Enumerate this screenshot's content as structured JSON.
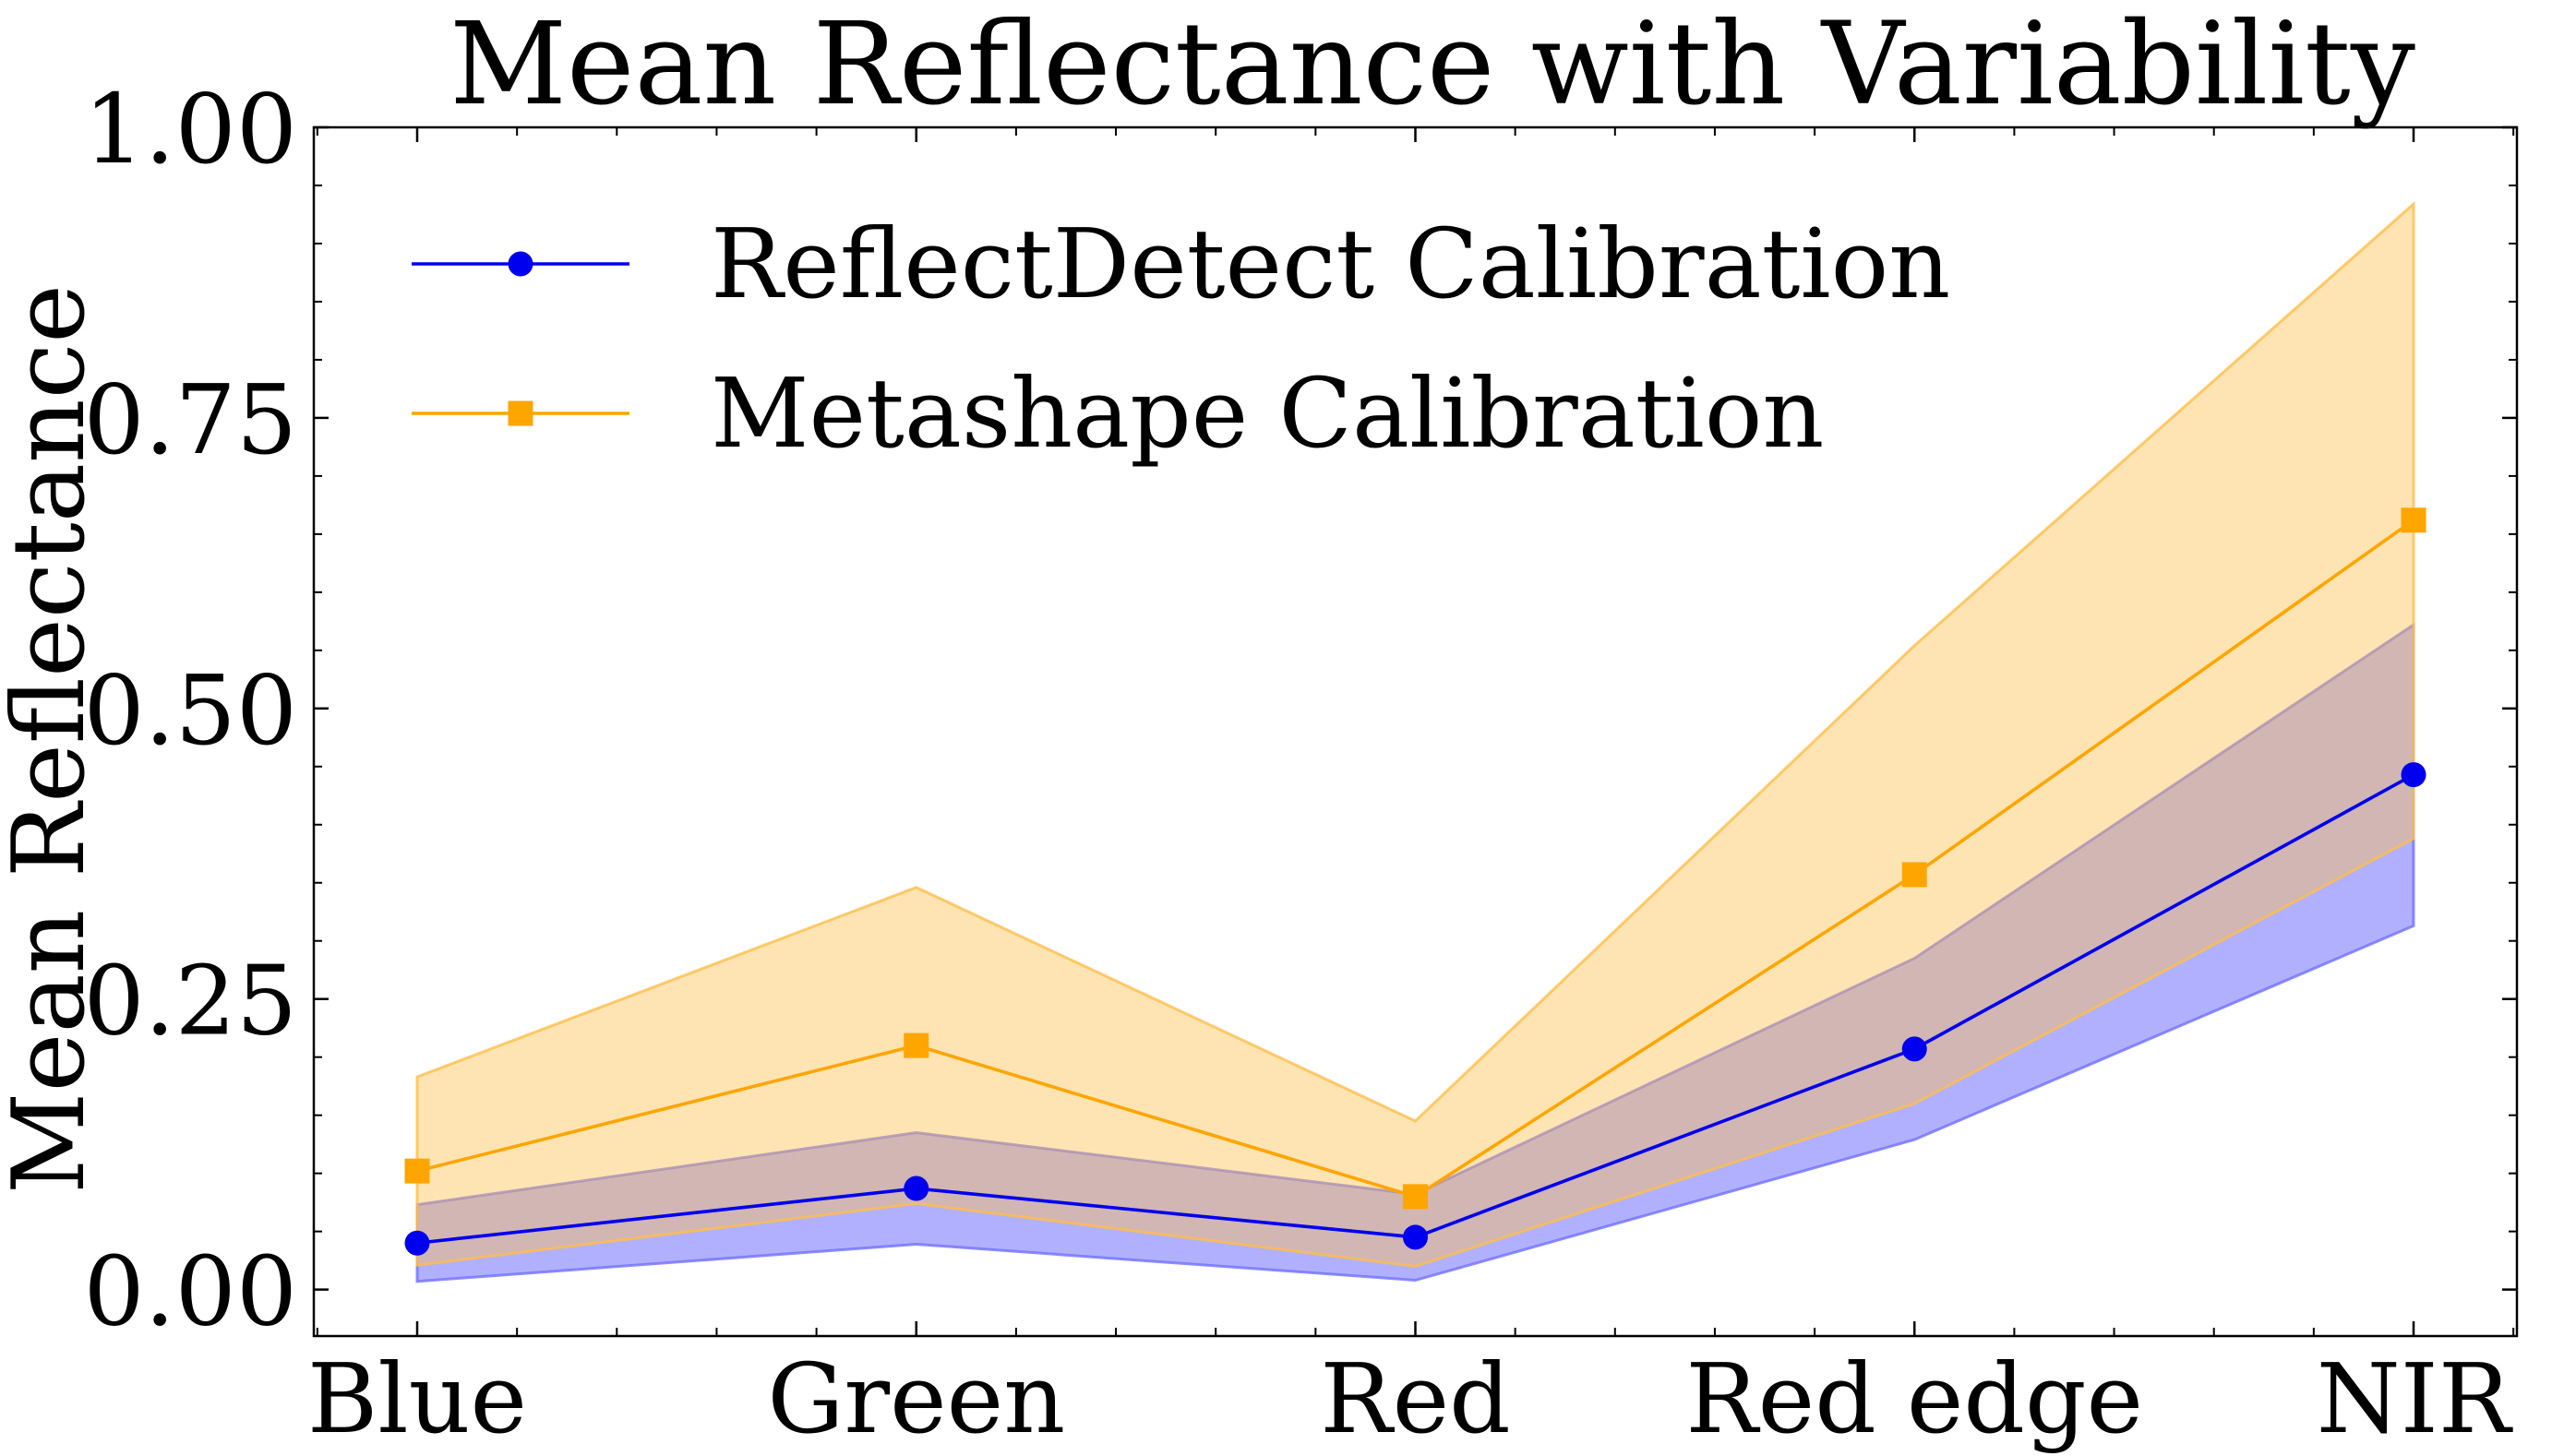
{
  "chart_data": {
    "type": "line",
    "title": "Mean Reflectance with Variability",
    "xlabel": "",
    "ylabel": "Mean Reflectance",
    "categories": [
      "Blue",
      "Green",
      "Red",
      "Red edge",
      "NIR"
    ],
    "ylim": [
      -0.04,
      1.0
    ],
    "yticks": [
      0.0,
      0.25,
      0.5,
      0.75,
      1.0
    ],
    "ytick_labels": [
      "0.00",
      "0.25",
      "0.50",
      "0.75",
      "1.00"
    ],
    "grid": false,
    "legend_position": "upper-left",
    "series": [
      {
        "name": "ReflectDetect Calibration",
        "color": "#0000ee",
        "marker": "circle",
        "values": [
          0.04,
          0.087,
          0.045,
          0.207,
          0.443
        ],
        "band_lower": [
          0.007,
          0.039,
          0.008,
          0.129,
          0.313
        ],
        "band_upper": [
          0.073,
          0.135,
          0.082,
          0.285,
          0.572
        ],
        "band_color": "#7070ff"
      },
      {
        "name": "Metashape Calibration",
        "color": "#ffa500",
        "marker": "square",
        "values": [
          0.102,
          0.21,
          0.08,
          0.357,
          0.662
        ],
        "band_lower": [
          0.021,
          0.074,
          0.02,
          0.16,
          0.388
        ],
        "band_upper": [
          0.183,
          0.346,
          0.145,
          0.554,
          0.934
        ],
        "band_color": "#ffbe4a"
      }
    ]
  }
}
